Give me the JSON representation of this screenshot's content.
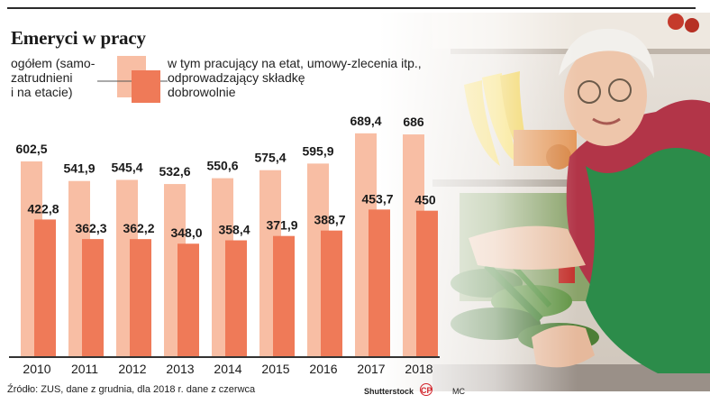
{
  "title": "Emeryci w pracy",
  "legend": {
    "total_label_lines": [
      "ogółem (samo-",
      "zatrudnieni",
      "i na etacie)"
    ],
    "employed_label_lines": [
      "w tym pracujący na etat, umowy-zlecenia itp.,",
      "odprowadzający składkę",
      "dobrowolnie"
    ]
  },
  "colors": {
    "total": "#f8bea4",
    "employed": "#ef7a58",
    "text": "#1a1a1a"
  },
  "footer": {
    "source": "Źródło: ZUS, dane z grudnia, dla 2018 r. dane z czerwca"
  },
  "credits": {
    "photo": "Shutterstock",
    "agency_logo": "CP",
    "author": "MC"
  },
  "chart_data": {
    "type": "bar",
    "categories": [
      "2010",
      "2011",
      "2012",
      "2013",
      "2014",
      "2015",
      "2016",
      "2017",
      "2018"
    ],
    "series": [
      {
        "name": "ogółem (samozatrudnieni i na etacie)",
        "values": [
          602.5,
          541.9,
          545.4,
          532.6,
          550.6,
          575.4,
          595.9,
          689.4,
          686
        ],
        "labels": [
          "602,5",
          "541,9",
          "545,4",
          "532,6",
          "550,6",
          "575,4",
          "595,9",
          "689,4",
          "686"
        ]
      },
      {
        "name": "w tym pracujący na etat, umowy-zlecenia itp., odprowadzający składkę dobrowolnie",
        "values": [
          422.8,
          362.3,
          362.2,
          348.0,
          358.4,
          371.9,
          388.7,
          453.7,
          450
        ],
        "labels": [
          "422,8",
          "362,3",
          "362,2",
          "348,0",
          "358,4",
          "371,9",
          "388,7",
          "453,7",
          "450"
        ]
      }
    ],
    "title": "Emeryci w pracy",
    "xlabel": "",
    "ylabel": "",
    "ylim": [
      0,
      700
    ],
    "grid": false,
    "legend_position": "top"
  }
}
